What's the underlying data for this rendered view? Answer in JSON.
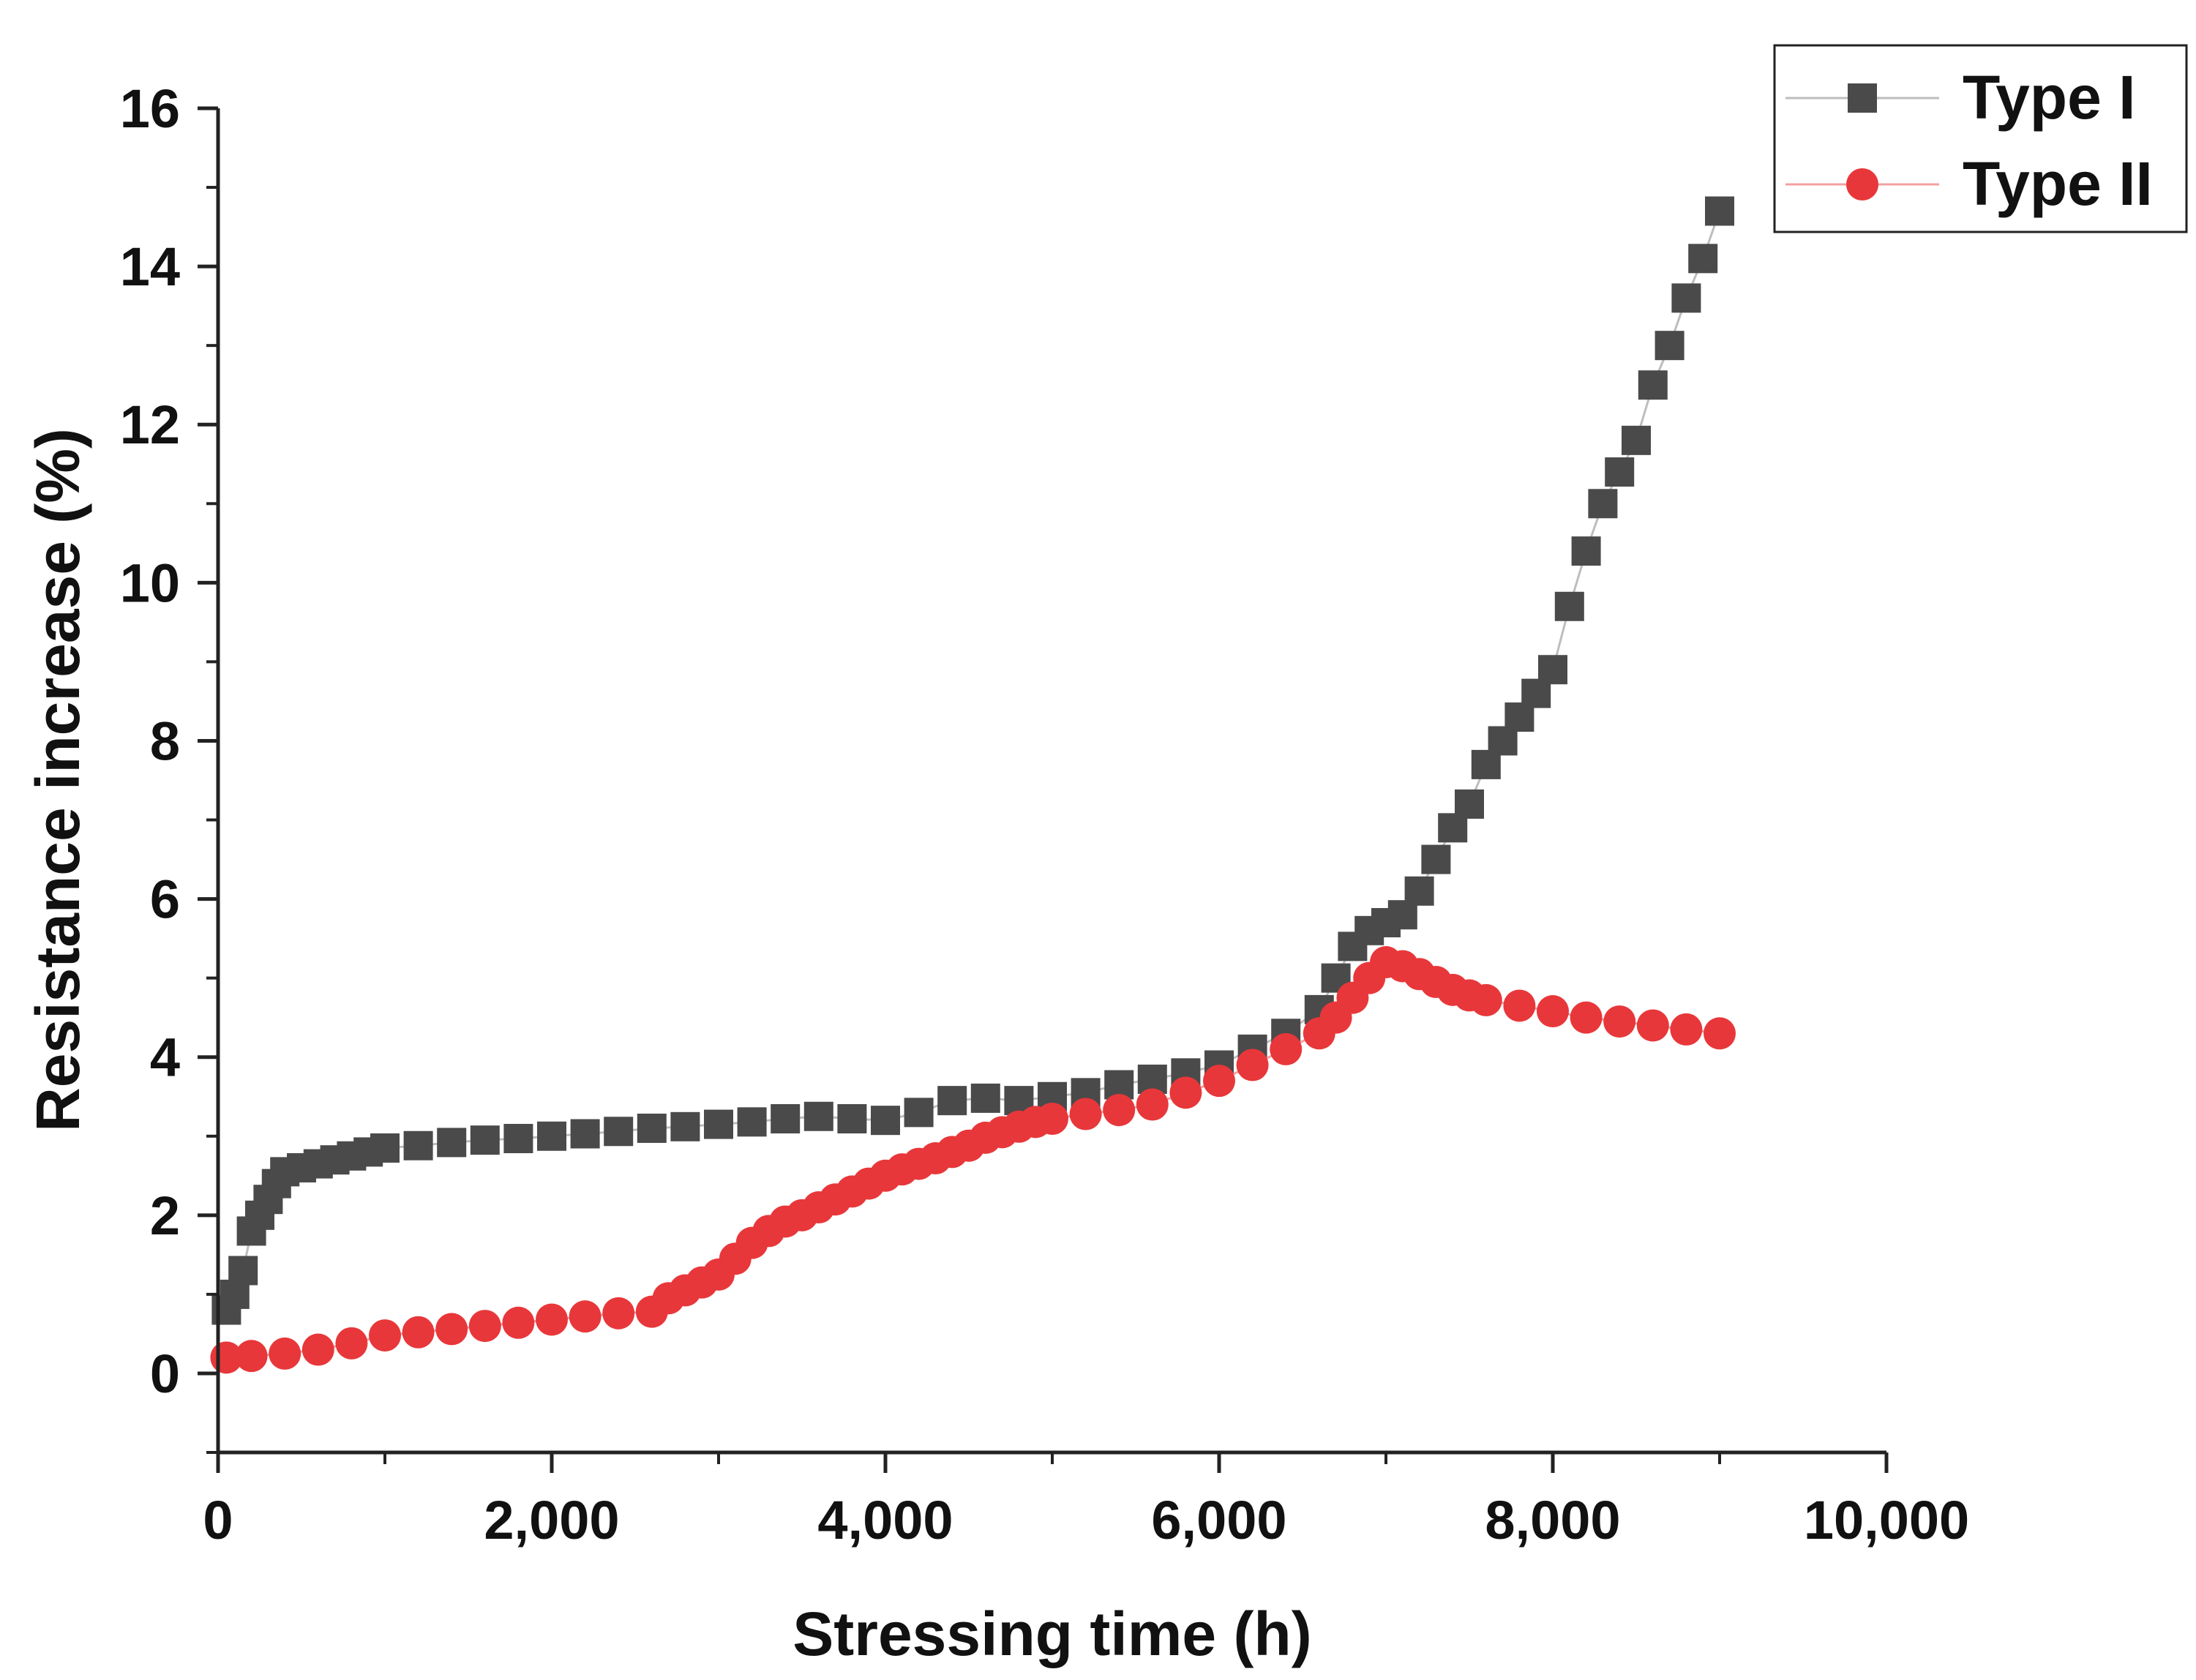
{
  "chart_data": {
    "type": "scatter",
    "title": "",
    "xlabel": "Stressing time (h)",
    "ylabel": "Resistance increase (%)",
    "xlim": [
      0,
      10000
    ],
    "ylim": [
      -1,
      16
    ],
    "x_ticks": [
      0,
      2000,
      4000,
      6000,
      8000,
      10000
    ],
    "x_tick_labels": [
      "0",
      "2,000",
      "4,000",
      "6,000",
      "8,000",
      "10,000"
    ],
    "y_ticks": [
      0,
      2,
      4,
      6,
      8,
      10,
      12,
      14,
      16
    ],
    "y_tick_labels": [
      "0",
      "2",
      "4",
      "6",
      "8",
      "10",
      "12",
      "14",
      "16"
    ],
    "grid": false,
    "legend_position": "top-right",
    "series": [
      {
        "name": "Type I",
        "marker": "square",
        "color": "#4a4a4a",
        "line_color": "#bdbdbd",
        "x": [
          50,
          100,
          150,
          200,
          250,
          300,
          350,
          400,
          500,
          600,
          700,
          800,
          900,
          1000,
          1200,
          1400,
          1600,
          1800,
          2000,
          2200,
          2400,
          2600,
          2800,
          3000,
          3200,
          3400,
          3600,
          3800,
          4000,
          4200,
          4400,
          4600,
          4800,
          5000,
          5200,
          5400,
          5600,
          5800,
          6000,
          6200,
          6400,
          6600,
          6700,
          6800,
          6900,
          7000,
          7100,
          7200,
          7300,
          7400,
          7500,
          7600,
          7700,
          7800,
          7900,
          8000,
          8100,
          8200,
          8300,
          8400,
          8500,
          8600,
          8700,
          8800,
          8900,
          9000
        ],
        "y": [
          0.8,
          1.0,
          1.3,
          1.8,
          2.0,
          2.2,
          2.4,
          2.55,
          2.6,
          2.65,
          2.7,
          2.75,
          2.8,
          2.85,
          2.88,
          2.92,
          2.95,
          2.97,
          3.0,
          3.03,
          3.06,
          3.1,
          3.12,
          3.15,
          3.18,
          3.22,
          3.25,
          3.22,
          3.2,
          3.3,
          3.45,
          3.48,
          3.45,
          3.5,
          3.55,
          3.65,
          3.72,
          3.8,
          3.9,
          4.1,
          4.3,
          4.6,
          5.0,
          5.4,
          5.6,
          5.7,
          5.8,
          6.1,
          6.5,
          6.9,
          7.2,
          7.7,
          8.0,
          8.3,
          8.6,
          8.9,
          9.7,
          10.4,
          11.0,
          11.4,
          11.8,
          12.5,
          13.0,
          13.6,
          14.1,
          14.7
        ]
      },
      {
        "name": "Type II",
        "marker": "circle",
        "color": "#e8373a",
        "line_color": "#f2a0a2",
        "x": [
          50,
          200,
          400,
          600,
          800,
          1000,
          1200,
          1400,
          1600,
          1800,
          2000,
          2200,
          2400,
          2600,
          2700,
          2800,
          2900,
          3000,
          3100,
          3200,
          3300,
          3400,
          3500,
          3600,
          3700,
          3800,
          3900,
          4000,
          4100,
          4200,
          4300,
          4400,
          4500,
          4600,
          4700,
          4800,
          4900,
          5000,
          5200,
          5400,
          5600,
          5800,
          6000,
          6200,
          6400,
          6600,
          6700,
          6800,
          6900,
          7000,
          7100,
          7200,
          7300,
          7400,
          7500,
          7600,
          7800,
          8000,
          8200,
          8400,
          8600,
          8800,
          9000
        ],
        "y": [
          0.2,
          0.22,
          0.25,
          0.3,
          0.38,
          0.48,
          0.52,
          0.56,
          0.6,
          0.64,
          0.68,
          0.72,
          0.76,
          0.78,
          0.95,
          1.05,
          1.15,
          1.25,
          1.45,
          1.65,
          1.8,
          1.92,
          2.0,
          2.1,
          2.2,
          2.3,
          2.4,
          2.5,
          2.58,
          2.65,
          2.72,
          2.8,
          2.88,
          2.98,
          3.05,
          3.12,
          3.18,
          3.22,
          3.28,
          3.33,
          3.4,
          3.55,
          3.7,
          3.9,
          4.1,
          4.3,
          4.5,
          4.75,
          5.0,
          5.2,
          5.15,
          5.05,
          4.95,
          4.85,
          4.78,
          4.72,
          4.65,
          4.58,
          4.5,
          4.45,
          4.4,
          4.35,
          4.3
        ]
      }
    ]
  }
}
